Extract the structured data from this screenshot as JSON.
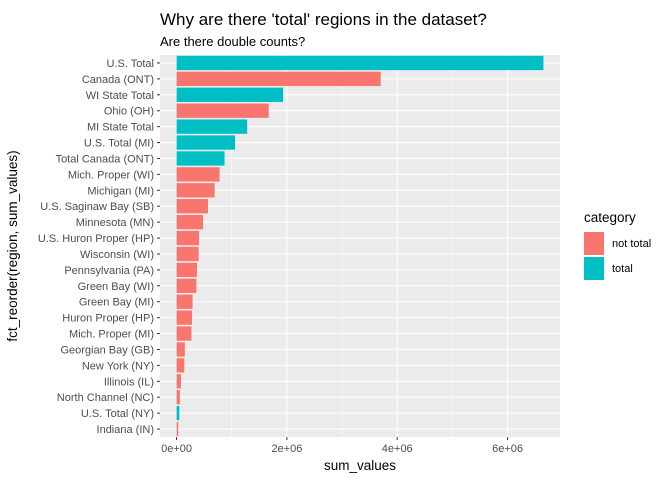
{
  "chart_data": {
    "type": "bar",
    "orientation": "horizontal",
    "title": "Why are there 'total' regions in the dataset?",
    "subtitle": "Are there double counts?",
    "xlabel": "sum_values",
    "ylabel": "fct_reorder(region, sum_values)",
    "xlim": [
      -300000,
      6950000
    ],
    "xticks": [
      0,
      2000000,
      4000000,
      6000000
    ],
    "xtick_labels": [
      "0e+00",
      "2e+06",
      "4e+06",
      "6e+06"
    ],
    "grid": true,
    "legend": {
      "title": "category",
      "position": "right",
      "entries": [
        {
          "label": "not total",
          "color": "#F8766D"
        },
        {
          "label": "total",
          "color": "#00BFC4"
        }
      ]
    },
    "categories": [
      "U.S. Total",
      "Canada (ONT)",
      "WI State Total",
      "Ohio (OH)",
      "MI State Total",
      "U.S. Total (MI)",
      "Total Canada (ONT)",
      "Mich. Proper (WI)",
      "Michigan (MI)",
      "U.S. Saginaw Bay (SB)",
      "Minnesota (MN)",
      "U.S. Huron Proper (HP)",
      "Wisconsin (WI)",
      "Pennsylvania (PA)",
      "Green Bay (WI)",
      "Green Bay (MI)",
      "Huron Proper (HP)",
      "Mich. Proper (MI)",
      "Georgian Bay (GB)",
      "New York (NY)",
      "Illinois (IL)",
      "North Channel (NC)",
      "U.S. Total (NY)",
      "Indiana (IN)"
    ],
    "values": [
      6650000,
      3700000,
      1930000,
      1670000,
      1280000,
      1060000,
      870000,
      780000,
      690000,
      570000,
      480000,
      410000,
      400000,
      370000,
      360000,
      290000,
      280000,
      270000,
      150000,
      140000,
      80000,
      60000,
      50000,
      30000
    ],
    "category_group": [
      "total",
      "not total",
      "total",
      "not total",
      "total",
      "total",
      "total",
      "not total",
      "not total",
      "not total",
      "not total",
      "not total",
      "not total",
      "not total",
      "not total",
      "not total",
      "not total",
      "not total",
      "not total",
      "not total",
      "not total",
      "not total",
      "total",
      "not total"
    ]
  }
}
